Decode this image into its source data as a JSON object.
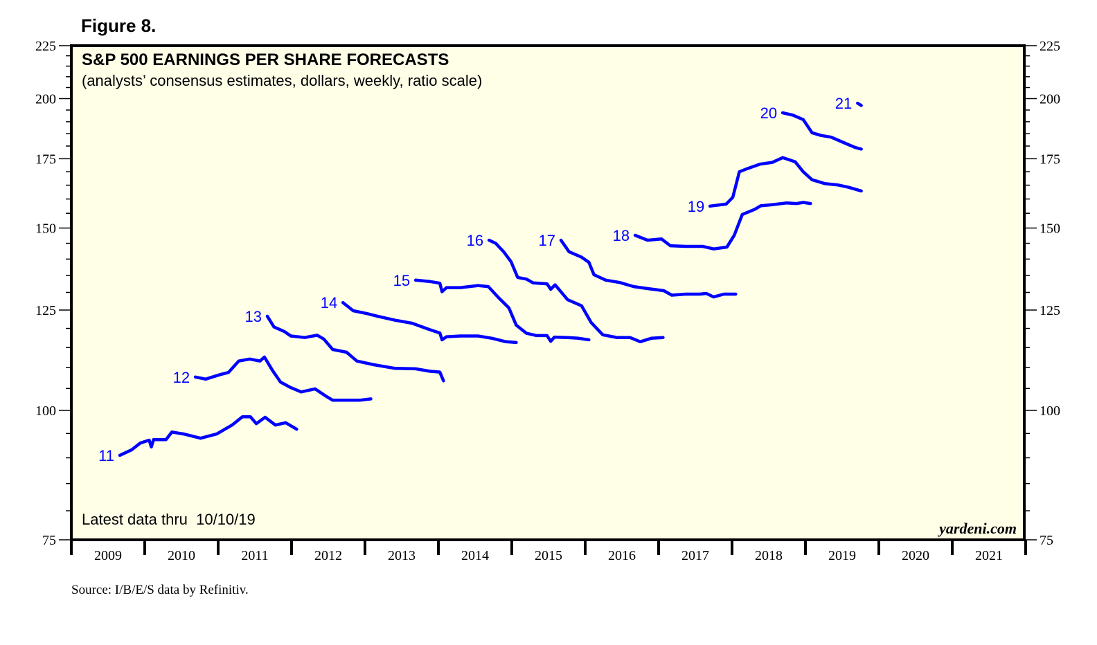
{
  "figure_label": "Figure 8.",
  "source": "Source: I/B/E/S data by Refinitiv.",
  "chart_data": {
    "type": "line",
    "title": "S&P 500 EARNINGS PER SHARE FORECASTS",
    "subtitle": "(analysts’ consensus estimates, dollars, weekly, ratio scale)",
    "annotation_latest": "Latest data thru  10/10/19",
    "watermark": "yardeni.com",
    "xlabel": "",
    "ylabel": "",
    "yscale": "log",
    "ylim": [
      75,
      225
    ],
    "xlim": [
      2009,
      2022
    ],
    "y_ticks_major": [
      75,
      100,
      125,
      150,
      175,
      200,
      225
    ],
    "y_ticks_minor_step": 5,
    "y_axis_both_sides": true,
    "x_tick_labels": [
      "2009",
      "2010",
      "2011",
      "2012",
      "2013",
      "2014",
      "2015",
      "2016",
      "2017",
      "2018",
      "2019",
      "2020",
      "2021"
    ],
    "grid": false,
    "background": "#FFFFE8",
    "line_color": "#0000FF",
    "series": [
      {
        "name": "11",
        "points": [
          [
            2009.66,
            90.5
          ],
          [
            2009.82,
            91.6
          ],
          [
            2009.94,
            93.0
          ],
          [
            2010.06,
            93.6
          ],
          [
            2010.09,
            92.2
          ],
          [
            2010.12,
            93.7
          ],
          [
            2010.29,
            93.7
          ],
          [
            2010.37,
            95.3
          ],
          [
            2010.53,
            94.9
          ],
          [
            2010.76,
            94.0
          ],
          [
            2010.98,
            94.9
          ],
          [
            2011.19,
            96.8
          ],
          [
            2011.33,
            98.6
          ],
          [
            2011.44,
            98.6
          ],
          [
            2011.52,
            97.1
          ],
          [
            2011.64,
            98.5
          ],
          [
            2011.78,
            96.8
          ],
          [
            2011.92,
            97.3
          ],
          [
            2012.07,
            95.9
          ]
        ]
      },
      {
        "name": "12",
        "points": [
          [
            2010.69,
            107.7
          ],
          [
            2010.83,
            107.2
          ],
          [
            2011.03,
            108.3
          ],
          [
            2011.14,
            108.8
          ],
          [
            2011.28,
            111.6
          ],
          [
            2011.43,
            112.1
          ],
          [
            2011.57,
            111.6
          ],
          [
            2011.63,
            112.6
          ],
          [
            2011.74,
            109.3
          ],
          [
            2011.85,
            106.5
          ],
          [
            2011.99,
            105.2
          ],
          [
            2012.13,
            104.2
          ],
          [
            2012.32,
            104.9
          ],
          [
            2012.46,
            103.3
          ],
          [
            2012.56,
            102.3
          ],
          [
            2012.75,
            102.3
          ],
          [
            2012.93,
            102.3
          ],
          [
            2013.08,
            102.6
          ]
        ]
      },
      {
        "name": "13",
        "points": [
          [
            2011.67,
            123.3
          ],
          [
            2011.76,
            120.4
          ],
          [
            2011.9,
            119.2
          ],
          [
            2011.99,
            118.0
          ],
          [
            2012.18,
            117.6
          ],
          [
            2012.35,
            118.2
          ],
          [
            2012.44,
            117.2
          ],
          [
            2012.56,
            114.5
          ],
          [
            2012.75,
            113.8
          ],
          [
            2012.89,
            111.6
          ],
          [
            2013.12,
            110.7
          ],
          [
            2013.41,
            109.8
          ],
          [
            2013.69,
            109.7
          ],
          [
            2013.88,
            109.1
          ],
          [
            2014.02,
            108.9
          ],
          [
            2014.07,
            106.8
          ]
        ]
      },
      {
        "name": "14",
        "points": [
          [
            2012.7,
            127.1
          ],
          [
            2012.84,
            124.8
          ],
          [
            2013.03,
            124.0
          ],
          [
            2013.17,
            123.3
          ],
          [
            2013.41,
            122.2
          ],
          [
            2013.64,
            121.4
          ],
          [
            2013.88,
            119.7
          ],
          [
            2014.02,
            118.8
          ],
          [
            2014.05,
            117.0
          ],
          [
            2014.11,
            117.8
          ],
          [
            2014.3,
            118.0
          ],
          [
            2014.54,
            118.0
          ],
          [
            2014.73,
            117.4
          ],
          [
            2014.92,
            116.5
          ],
          [
            2015.06,
            116.3
          ]
        ]
      },
      {
        "name": "15",
        "points": [
          [
            2013.69,
            133.6
          ],
          [
            2013.88,
            133.2
          ],
          [
            2014.02,
            132.7
          ],
          [
            2014.05,
            130.2
          ],
          [
            2014.11,
            131.4
          ],
          [
            2014.3,
            131.4
          ],
          [
            2014.54,
            132.0
          ],
          [
            2014.68,
            131.7
          ],
          [
            2014.82,
            128.5
          ],
          [
            2014.96,
            125.6
          ],
          [
            2015.06,
            120.9
          ],
          [
            2015.2,
            118.7
          ],
          [
            2015.34,
            118.1
          ],
          [
            2015.48,
            118.1
          ],
          [
            2015.53,
            116.6
          ],
          [
            2015.58,
            117.7
          ],
          [
            2015.76,
            117.6
          ],
          [
            2015.91,
            117.4
          ],
          [
            2016.05,
            117.0
          ]
        ]
      },
      {
        "name": "16",
        "points": [
          [
            2014.69,
            146.0
          ],
          [
            2014.78,
            145.0
          ],
          [
            2014.89,
            142.3
          ],
          [
            2014.99,
            139.2
          ],
          [
            2015.08,
            134.4
          ],
          [
            2015.2,
            133.9
          ],
          [
            2015.29,
            132.8
          ],
          [
            2015.48,
            132.5
          ],
          [
            2015.53,
            130.9
          ],
          [
            2015.59,
            132.2
          ],
          [
            2015.76,
            127.9
          ],
          [
            2015.95,
            126.2
          ],
          [
            2016.08,
            121.6
          ],
          [
            2016.24,
            118.3
          ],
          [
            2016.43,
            117.6
          ],
          [
            2016.61,
            117.6
          ],
          [
            2016.75,
            116.5
          ],
          [
            2016.9,
            117.4
          ],
          [
            2017.06,
            117.6
          ]
        ]
      },
      {
        "name": "17",
        "points": [
          [
            2015.67,
            146.0
          ],
          [
            2015.78,
            142.3
          ],
          [
            2015.95,
            140.6
          ],
          [
            2016.05,
            139.0
          ],
          [
            2016.12,
            135.2
          ],
          [
            2016.28,
            133.6
          ],
          [
            2016.47,
            132.9
          ],
          [
            2016.66,
            131.7
          ],
          [
            2016.85,
            131.1
          ],
          [
            2017.07,
            130.5
          ],
          [
            2017.18,
            129.2
          ],
          [
            2017.37,
            129.5
          ],
          [
            2017.56,
            129.5
          ],
          [
            2017.65,
            129.7
          ],
          [
            2017.75,
            128.7
          ],
          [
            2017.89,
            129.5
          ],
          [
            2018.05,
            129.5
          ]
        ]
      },
      {
        "name": "18",
        "points": [
          [
            2016.68,
            147.6
          ],
          [
            2016.85,
            146.0
          ],
          [
            2017.04,
            146.4
          ],
          [
            2017.16,
            144.2
          ],
          [
            2017.37,
            144.0
          ],
          [
            2017.6,
            144.0
          ],
          [
            2017.75,
            143.2
          ],
          [
            2017.93,
            143.8
          ],
          [
            2018.03,
            147.6
          ],
          [
            2018.14,
            154.6
          ],
          [
            2018.31,
            156.4
          ],
          [
            2018.39,
            157.6
          ],
          [
            2018.55,
            158.0
          ],
          [
            2018.74,
            158.6
          ],
          [
            2018.88,
            158.4
          ],
          [
            2018.97,
            158.8
          ],
          [
            2019.07,
            158.4
          ]
        ]
      },
      {
        "name": "19",
        "points": [
          [
            2017.7,
            157.5
          ],
          [
            2017.92,
            158.2
          ],
          [
            2018.01,
            160.6
          ],
          [
            2018.1,
            170.0
          ],
          [
            2018.22,
            171.3
          ],
          [
            2018.38,
            172.9
          ],
          [
            2018.55,
            173.6
          ],
          [
            2018.69,
            175.4
          ],
          [
            2018.86,
            173.8
          ],
          [
            2018.97,
            170.0
          ],
          [
            2019.09,
            167.0
          ],
          [
            2019.26,
            165.6
          ],
          [
            2019.44,
            165.1
          ],
          [
            2019.59,
            164.2
          ],
          [
            2019.76,
            162.9
          ]
        ]
      },
      {
        "name": "20",
        "points": [
          [
            2018.69,
            193.8
          ],
          [
            2018.83,
            192.8
          ],
          [
            2018.97,
            190.9
          ],
          [
            2019.09,
            185.4
          ],
          [
            2019.21,
            184.3
          ],
          [
            2019.35,
            183.6
          ],
          [
            2019.52,
            181.4
          ],
          [
            2019.68,
            179.4
          ],
          [
            2019.76,
            178.8
          ]
        ]
      },
      {
        "name": "21",
        "points": [
          [
            2019.71,
            198.0
          ],
          [
            2019.76,
            197.0
          ]
        ]
      }
    ]
  }
}
